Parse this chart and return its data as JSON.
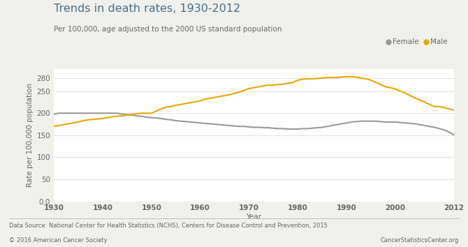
{
  "title": "Trends in death rates, 1930-2012",
  "subtitle": "Per 100,000, age adjusted to the 2000 US standard population",
  "xlabel": "Year",
  "ylabel": "Rate per 100,000 population",
  "footnote_left": "Data Source: National Center for Health Statistics (NCHS), Centers for Disease Control and Prevention, 2015",
  "footnote_right": "CancerStatisticsCenter.org",
  "copyright": "© 2016 American Cancer Society",
  "background_color": "#f0f0ec",
  "plot_bg_color": "#ffffff",
  "male_color": "#e8a800",
  "female_color": "#999999",
  "years": [
    1930,
    1931,
    1932,
    1933,
    1934,
    1935,
    1936,
    1937,
    1938,
    1939,
    1940,
    1941,
    1942,
    1943,
    1944,
    1945,
    1946,
    1947,
    1948,
    1949,
    1950,
    1951,
    1952,
    1953,
    1954,
    1955,
    1956,
    1957,
    1958,
    1959,
    1960,
    1961,
    1962,
    1963,
    1964,
    1965,
    1966,
    1967,
    1968,
    1969,
    1970,
    1971,
    1972,
    1973,
    1974,
    1975,
    1976,
    1977,
    1978,
    1979,
    1980,
    1981,
    1982,
    1983,
    1984,
    1985,
    1986,
    1987,
    1988,
    1989,
    1990,
    1991,
    1992,
    1993,
    1994,
    1995,
    1996,
    1997,
    1998,
    1999,
    2000,
    2001,
    2002,
    2003,
    2004,
    2005,
    2006,
    2007,
    2008,
    2009,
    2010,
    2011,
    2012
  ],
  "male": [
    170,
    172,
    174,
    176,
    178,
    180,
    183,
    185,
    186,
    187,
    188,
    190,
    192,
    193,
    194,
    196,
    197,
    199,
    200,
    200,
    200,
    205,
    210,
    214,
    215,
    218,
    220,
    222,
    224,
    226,
    228,
    232,
    234,
    236,
    238,
    240,
    242,
    245,
    248,
    252,
    256,
    258,
    260,
    262,
    264,
    264,
    265,
    266,
    268,
    270,
    275,
    277,
    278,
    278,
    279,
    280,
    281,
    281,
    281,
    282,
    283,
    283,
    282,
    280,
    278,
    275,
    270,
    265,
    260,
    258,
    255,
    250,
    246,
    240,
    235,
    230,
    225,
    220,
    215,
    215,
    213,
    210,
    207
  ],
  "female": [
    198,
    200,
    200,
    200,
    200,
    200,
    200,
    200,
    200,
    200,
    200,
    200,
    200,
    200,
    198,
    197,
    196,
    194,
    193,
    191,
    190,
    189,
    188,
    186,
    185,
    183,
    182,
    181,
    180,
    179,
    178,
    177,
    176,
    175,
    174,
    173,
    172,
    171,
    170,
    170,
    169,
    168,
    168,
    167,
    167,
    166,
    165,
    165,
    164,
    164,
    164,
    165,
    165,
    166,
    167,
    168,
    170,
    172,
    174,
    176,
    178,
    180,
    181,
    182,
    182,
    182,
    182,
    181,
    180,
    180,
    180,
    179,
    178,
    177,
    176,
    174,
    172,
    170,
    168,
    165,
    162,
    157,
    151
  ],
  "ylim": [
    0,
    300
  ],
  "yticks": [
    0,
    50,
    100,
    150,
    200,
    250,
    280
  ],
  "xticks": [
    1930,
    1940,
    1950,
    1960,
    1970,
    1980,
    1990,
    2000,
    2012
  ],
  "title_color": "#4a6f8a",
  "subtitle_color": "#666666",
  "axis_label_color": "#666666",
  "tick_color": "#666666",
  "grid_color": "#dddddd"
}
